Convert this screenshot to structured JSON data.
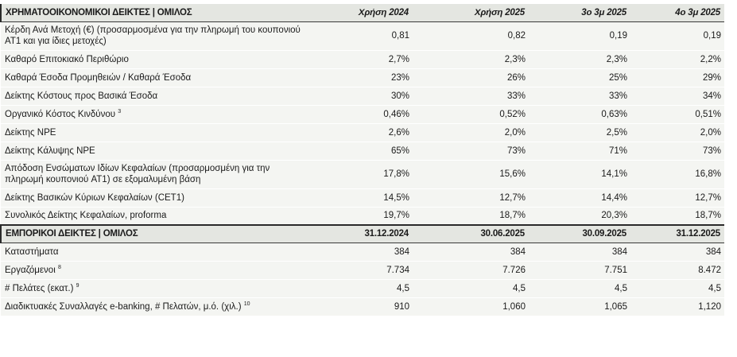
{
  "financial": {
    "header": [
      "ΧΡΗΜΑΤΟΟΙΚΟΝΟΜΙΚΟΙ ΔΕΙΚΤΕΣ | ΟΜΙΛΟΣ",
      "Χρήση 2024",
      "Χρήση 2025",
      "3ο 3μ 2025",
      "4ο 3μ 2025"
    ],
    "rows": [
      {
        "label": "Κέρδη Ανά Μετοχή (€) (προσαρμοσμένα για την πληρωμή του κουπονιού AT1 και για ίδιες μετοχές)",
        "sup": "",
        "values": [
          "0,81",
          "0,82",
          "0,19",
          "0,19"
        ],
        "tall": true
      },
      {
        "label": "Καθαρό Επιτοκιακό Περιθώριο",
        "sup": "",
        "values": [
          "2,7%",
          "2,3%",
          "2,3%",
          "2,2%"
        ]
      },
      {
        "label": "Καθαρά Έσοδα Προμηθειών / Καθαρά Έσοδα",
        "sup": "",
        "values": [
          "23%",
          "26%",
          "25%",
          "29%"
        ]
      },
      {
        "label": "Δείκτης Κόστους προς Βασικά Έσοδα",
        "sup": "",
        "values": [
          "30%",
          "33%",
          "33%",
          "34%"
        ]
      },
      {
        "label": "Οργανικό Κόστος Κινδύνου",
        "sup": "3",
        "values": [
          "0,46%",
          "0,52%",
          "0,63%",
          "0,51%"
        ]
      },
      {
        "label": "Δείκτης NPE",
        "sup": "",
        "values": [
          "2,6%",
          "2,0%",
          "2,5%",
          "2,0%"
        ]
      },
      {
        "label": "Δείκτης Κάλυψης NPE",
        "sup": "",
        "values": [
          "65%",
          "73%",
          "71%",
          "73%"
        ]
      },
      {
        "label": "Απόδοση Ενσώματων Ιδίων Κεφαλαίων (προσαρμοσμένη για την πληρωμή κουπονιού AT1) σε εξομαλυμένη βάση",
        "sup": "",
        "values": [
          "17,8%",
          "15,6%",
          "14,1%",
          "16,8%"
        ],
        "tall": true
      },
      {
        "label": "Δείκτης Βασικών Κύριων Κεφαλαίων (CET1)",
        "sup": "",
        "values": [
          "14,5%",
          "12,7%",
          "14,4%",
          "12,7%"
        ]
      },
      {
        "label": "Συνολικός Δείκτης Κεφαλαίων, proforma",
        "sup": "",
        "values": [
          "19,7%",
          "18,7%",
          "20,3%",
          "18,7%"
        ]
      }
    ]
  },
  "commercial": {
    "header": [
      "ΕΜΠΟΡΙΚΟΙ ΔΕΙΚΤΕΣ | ΟΜΙΛΟΣ",
      "31.12.2024",
      "30.06.2025",
      "30.09.2025",
      "31.12.2025"
    ],
    "rows": [
      {
        "label": "Καταστήματα",
        "sup": "",
        "values": [
          "384",
          "384",
          "384",
          "384"
        ]
      },
      {
        "label": "Εργαζόμενοι",
        "sup": "8",
        "values": [
          "7.734",
          "7.726",
          "7.751",
          "8.472"
        ]
      },
      {
        "label": "# Πελάτες (εκατ.)",
        "sup": "9",
        "values": [
          "4,5",
          "4,5",
          "4,5",
          "4,5"
        ]
      },
      {
        "label": "Διαδικτυακές Συναλλαγές e-banking, # Πελατών, μ.ό. (χιλ.)",
        "sup": "10",
        "values": [
          "910",
          "1,060",
          "1,065",
          "1,120"
        ]
      }
    ]
  }
}
